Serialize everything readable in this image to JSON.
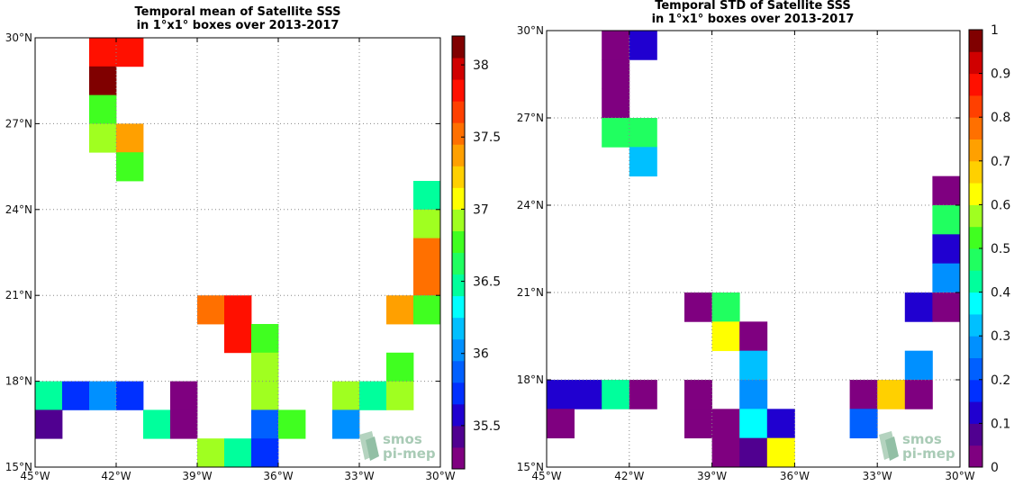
{
  "chart_data": [
    {
      "type": "heatmap",
      "title_line1": "Temporal mean of Satellite SSS",
      "title_line2": "in 1°x1° boxes over 2013-2017",
      "xlim": [
        -45,
        -30
      ],
      "ylim": [
        15,
        30
      ],
      "xticks": [
        {
          "value": -45,
          "label": "45°W"
        },
        {
          "value": -42,
          "label": "42°W"
        },
        {
          "value": -39,
          "label": "39°W"
        },
        {
          "value": -36,
          "label": "36°W"
        },
        {
          "value": -33,
          "label": "33°W"
        },
        {
          "value": -30,
          "label": "30°W"
        }
      ],
      "yticks": [
        {
          "value": 15,
          "label": "15°N"
        },
        {
          "value": 18,
          "label": "18°N"
        },
        {
          "value": 21,
          "label": "21°N"
        },
        {
          "value": 24,
          "label": "24°N"
        },
        {
          "value": 27,
          "label": "27°N"
        },
        {
          "value": 30,
          "label": "30°N"
        }
      ],
      "grid": true,
      "colorbar": {
        "min": 35.2,
        "max": 38.2,
        "ticks": [
          {
            "value": 35.5,
            "label": "35.5"
          },
          {
            "value": 36,
            "label": "36"
          },
          {
            "value": 36.5,
            "label": "36.5"
          },
          {
            "value": 37,
            "label": "37"
          },
          {
            "value": 37.5,
            "label": "37.5"
          },
          {
            "value": 38,
            "label": "38"
          }
        ],
        "colors": [
          "#7f0080",
          "#500090",
          "#2000d0",
          "#0030ff",
          "#0060ff",
          "#0090ff",
          "#00c0ff",
          "#00ffff",
          "#00ff9c",
          "#20ff60",
          "#40ff20",
          "#a0ff20",
          "#ffff00",
          "#ffd000",
          "#ffa000",
          "#ff7000",
          "#ff4000",
          "#ff1000",
          "#d00000",
          "#800000"
        ]
      },
      "cells": [
        {
          "lon": -43,
          "lat": 29,
          "value": 37.8
        },
        {
          "lon": -42,
          "lat": 29,
          "value": 37.9
        },
        {
          "lon": -43,
          "lat": 28,
          "value": 38.1
        },
        {
          "lon": -43,
          "lat": 27,
          "value": 36.7
        },
        {
          "lon": -43,
          "lat": 26,
          "value": 37.0
        },
        {
          "lon": -42,
          "lat": 26,
          "value": 37.4
        },
        {
          "lon": -42,
          "lat": 25,
          "value": 36.7
        },
        {
          "lon": -31,
          "lat": 24,
          "value": 36.5
        },
        {
          "lon": -31,
          "lat": 23,
          "value": 37.0
        },
        {
          "lon": -31,
          "lat": 22,
          "value": 37.5
        },
        {
          "lon": -31,
          "lat": 21,
          "value": 37.5
        },
        {
          "lon": -39,
          "lat": 20,
          "value": 37.6
        },
        {
          "lon": -38,
          "lat": 20,
          "value": 37.9
        },
        {
          "lon": -32,
          "lat": 20,
          "value": 37.4
        },
        {
          "lon": -31,
          "lat": 20,
          "value": 36.7
        },
        {
          "lon": -38,
          "lat": 19,
          "value": 37.9
        },
        {
          "lon": -37,
          "lat": 19,
          "value": 36.7
        },
        {
          "lon": -37,
          "lat": 18,
          "value": 36.9
        },
        {
          "lon": -32,
          "lat": 18,
          "value": 36.7
        },
        {
          "lon": -45,
          "lat": 17,
          "value": 36.5
        },
        {
          "lon": -44,
          "lat": 17,
          "value": 35.8
        },
        {
          "lon": -43,
          "lat": 17,
          "value": 36.1
        },
        {
          "lon": -42,
          "lat": 17,
          "value": 35.8
        },
        {
          "lon": -40,
          "lat": 17,
          "value": 35.3
        },
        {
          "lon": -37,
          "lat": 17,
          "value": 36.9
        },
        {
          "lon": -34,
          "lat": 17,
          "value": 36.9
        },
        {
          "lon": -33,
          "lat": 17,
          "value": 36.5
        },
        {
          "lon": -32,
          "lat": 17,
          "value": 37.0
        },
        {
          "lon": -45,
          "lat": 16,
          "value": 35.5
        },
        {
          "lon": -41,
          "lat": 16,
          "value": 36.5
        },
        {
          "lon": -40,
          "lat": 16,
          "value": 35.3
        },
        {
          "lon": -37,
          "lat": 16,
          "value": 35.9
        },
        {
          "lon": -36,
          "lat": 16,
          "value": 36.7
        },
        {
          "lon": -34,
          "lat": 16,
          "value": 36.1
        },
        {
          "lon": -39,
          "lat": 15,
          "value": 36.9
        },
        {
          "lon": -38,
          "lat": 15,
          "value": 36.5
        },
        {
          "lon": -37,
          "lat": 15,
          "value": 35.8
        }
      ],
      "logo": {
        "line1": "smos",
        "line2": "pi-mep"
      }
    },
    {
      "type": "heatmap",
      "title_line1": "Temporal STD of Satellite SSS",
      "title_line2": "in 1°x1° boxes over 2013-2017",
      "xlim": [
        -45,
        -30
      ],
      "ylim": [
        15,
        30
      ],
      "xticks": [
        {
          "value": -45,
          "label": "45°W"
        },
        {
          "value": -42,
          "label": "42°W"
        },
        {
          "value": -39,
          "label": "39°W"
        },
        {
          "value": -36,
          "label": "36°W"
        },
        {
          "value": -33,
          "label": "33°W"
        },
        {
          "value": -30,
          "label": "30°W"
        }
      ],
      "yticks": [
        {
          "value": 15,
          "label": "15°N"
        },
        {
          "value": 18,
          "label": "18°N"
        },
        {
          "value": 21,
          "label": "21°N"
        },
        {
          "value": 24,
          "label": "24°N"
        },
        {
          "value": 27,
          "label": "27°N"
        },
        {
          "value": 30,
          "label": "30°N"
        }
      ],
      "grid": true,
      "colorbar": {
        "min": 0,
        "max": 1,
        "ticks": [
          {
            "value": 0,
            "label": "0"
          },
          {
            "value": 0.1,
            "label": "0.1"
          },
          {
            "value": 0.2,
            "label": "0.2"
          },
          {
            "value": 0.3,
            "label": "0.3"
          },
          {
            "value": 0.4,
            "label": "0.4"
          },
          {
            "value": 0.5,
            "label": "0.5"
          },
          {
            "value": 0.6,
            "label": "0.6"
          },
          {
            "value": 0.7,
            "label": "0.7"
          },
          {
            "value": 0.8,
            "label": "0.8"
          },
          {
            "value": 0.9,
            "label": "0.9"
          },
          {
            "value": 1,
            "label": "1"
          }
        ],
        "colors": [
          "#7f0080",
          "#500090",
          "#2000d0",
          "#0030ff",
          "#0060ff",
          "#0090ff",
          "#00c0ff",
          "#00ffff",
          "#00ff9c",
          "#20ff60",
          "#40ff20",
          "#a0ff20",
          "#ffff00",
          "#ffd000",
          "#ffa000",
          "#ff7000",
          "#ff4000",
          "#ff1000",
          "#d00000",
          "#800000"
        ]
      },
      "cells": [
        {
          "lon": -43,
          "lat": 29,
          "value": 0.02
        },
        {
          "lon": -42,
          "lat": 29,
          "value": 0.12
        },
        {
          "lon": -43,
          "lat": 28,
          "value": 0.02
        },
        {
          "lon": -43,
          "lat": 27,
          "value": 0.02
        },
        {
          "lon": -43,
          "lat": 26,
          "value": 0.48
        },
        {
          "lon": -42,
          "lat": 26,
          "value": 0.48
        },
        {
          "lon": -42,
          "lat": 25,
          "value": 0.32
        },
        {
          "lon": -31,
          "lat": 24,
          "value": 0.02
        },
        {
          "lon": -31,
          "lat": 23,
          "value": 0.48
        },
        {
          "lon": -31,
          "lat": 22,
          "value": 0.12
        },
        {
          "lon": -31,
          "lat": 21,
          "value": 0.27
        },
        {
          "lon": -40,
          "lat": 20,
          "value": 0.02
        },
        {
          "lon": -39,
          "lat": 20,
          "value": 0.48
        },
        {
          "lon": -32,
          "lat": 20,
          "value": 0.12
        },
        {
          "lon": -31,
          "lat": 20,
          "value": 0.02
        },
        {
          "lon": -39,
          "lat": 19,
          "value": 0.62
        },
        {
          "lon": -38,
          "lat": 19,
          "value": 0.02
        },
        {
          "lon": -38,
          "lat": 18,
          "value": 0.32
        },
        {
          "lon": -32,
          "lat": 18,
          "value": 0.27
        },
        {
          "lon": -45,
          "lat": 17,
          "value": 0.12
        },
        {
          "lon": -44,
          "lat": 17,
          "value": 0.12
        },
        {
          "lon": -43,
          "lat": 17,
          "value": 0.42
        },
        {
          "lon": -42,
          "lat": 17,
          "value": 0.02
        },
        {
          "lon": -40,
          "lat": 17,
          "value": 0.02
        },
        {
          "lon": -38,
          "lat": 17,
          "value": 0.27
        },
        {
          "lon": -34,
          "lat": 17,
          "value": 0.02
        },
        {
          "lon": -33,
          "lat": 17,
          "value": 0.67
        },
        {
          "lon": -32,
          "lat": 17,
          "value": 0.02
        },
        {
          "lon": -45,
          "lat": 16,
          "value": 0.02
        },
        {
          "lon": -40,
          "lat": 16,
          "value": 0.02
        },
        {
          "lon": -39,
          "lat": 16,
          "value": 0.02
        },
        {
          "lon": -38,
          "lat": 16,
          "value": 0.37
        },
        {
          "lon": -37,
          "lat": 16,
          "value": 0.12
        },
        {
          "lon": -34,
          "lat": 16,
          "value": 0.22
        },
        {
          "lon": -39,
          "lat": 15,
          "value": 0.02
        },
        {
          "lon": -38,
          "lat": 15,
          "value": 0.07
        },
        {
          "lon": -37,
          "lat": 15,
          "value": 0.62
        }
      ],
      "logo": {
        "line1": "smos",
        "line2": "pi-mep"
      }
    }
  ]
}
